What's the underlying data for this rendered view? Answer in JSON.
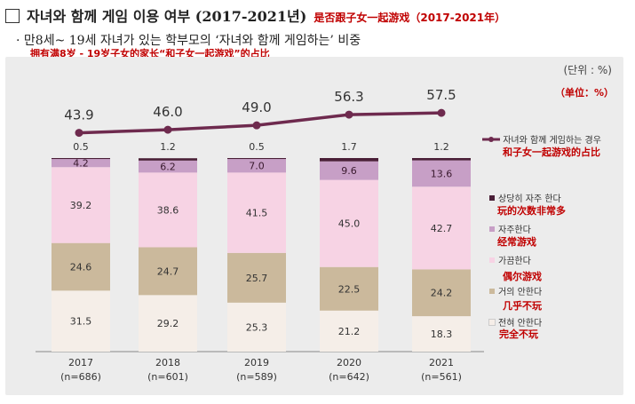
{
  "header": {
    "title_ko": "자녀와 함께 게임 이용 여부 (2017-2021년)",
    "title_cn": "是否跟子女一起游戏（2017-2021年）",
    "subtitle_ko": "· 만8세~ 19세 자녀가 있는 학부모의 ‘자녀와 함께 게임하는’ 비중",
    "subtitle_cn": "拥有满8岁 - 19岁子女的家长“和子女一起游戏”的占比",
    "unit_ko": "(단위 : %)",
    "unit_cn": "（单位：%）"
  },
  "chart_data": {
    "type": "bar",
    "stacked": true,
    "categories": [
      "2017",
      "2018",
      "2019",
      "2020",
      "2021"
    ],
    "category_sub": [
      "(n=686)",
      "(n=601)",
      "(n=589)",
      "(n=642)",
      "(n=561)"
    ],
    "series": [
      {
        "name": "전혀 안한다",
        "name_cn": "完全不玩",
        "color": "#f5eee8",
        "values": [
          31.5,
          29.2,
          25.3,
          21.2,
          18.3
        ]
      },
      {
        "name": "거의 안한다",
        "name_cn": "几乎不玩",
        "color": "#cbb99c",
        "values": [
          24.6,
          24.7,
          25.7,
          22.5,
          24.2
        ]
      },
      {
        "name": "가끔한다",
        "name_cn": "偶尔游戏",
        "color": "#f7d3e4",
        "values": [
          39.2,
          38.6,
          41.5,
          45.0,
          42.7
        ]
      },
      {
        "name": "자주한다",
        "name_cn": "经常游戏",
        "color": "#c79fc6",
        "values": [
          4.2,
          6.2,
          7.0,
          9.6,
          13.6
        ]
      },
      {
        "name": "상당히 자주 한다",
        "name_cn": "玩的次数非常多",
        "color": "#4a1f37",
        "values": [
          0.5,
          1.2,
          0.5,
          1.7,
          1.2
        ]
      }
    ],
    "line": {
      "name": "자녀와 함께 게임하는 경우",
      "name_cn": "和子女一起游戏的占比",
      "color": "#6e2a4e",
      "values": [
        43.9,
        46.0,
        49.0,
        56.3,
        57.5
      ]
    }
  }
}
